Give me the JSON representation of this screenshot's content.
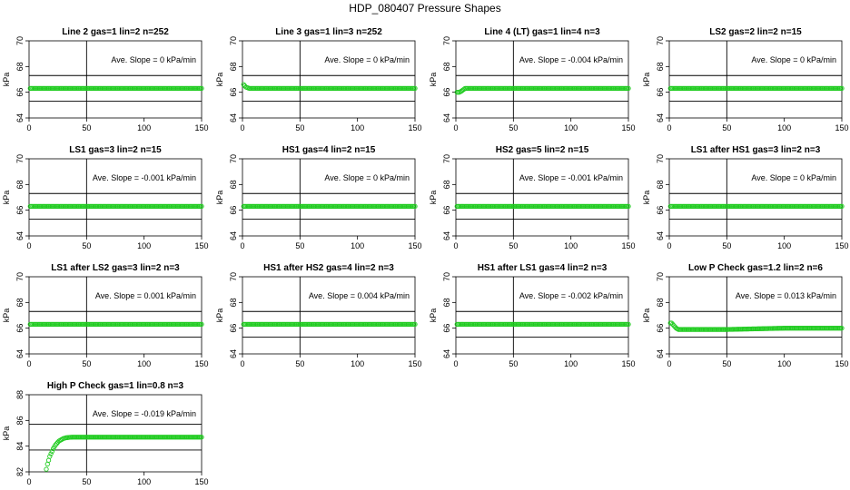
{
  "title": "HDP_080407  Pressure Shapes",
  "series_color": "#22cc22",
  "chart_data": [
    {
      "type": "scatter",
      "title": "Line 2 gas=1 lin=2 n=252",
      "ylabel": "kPa",
      "xlim": [
        0,
        150
      ],
      "ylim": [
        64,
        70
      ],
      "xticks": [
        0,
        50,
        100,
        150
      ],
      "yticks": [
        64,
        66,
        68,
        70
      ],
      "hlines": [
        65.3,
        67.3
      ],
      "vline": 50,
      "annotation": "Ave. Slope =  0  kPa/min",
      "x": [
        1,
        150
      ],
      "y": [
        66.3,
        66.3
      ]
    },
    {
      "type": "scatter",
      "title": "Line 3 gas=1 lin=3 n=252",
      "ylabel": "kPa",
      "xlim": [
        0,
        150
      ],
      "ylim": [
        64,
        70
      ],
      "xticks": [
        0,
        50,
        100,
        150
      ],
      "yticks": [
        64,
        66,
        68,
        70
      ],
      "hlines": [
        65.3,
        67.3
      ],
      "vline": 50,
      "annotation": "Ave. Slope =  0  kPa/min",
      "x": [
        1,
        3,
        6,
        150
      ],
      "y": [
        66.6,
        66.4,
        66.3,
        66.3
      ]
    },
    {
      "type": "scatter",
      "title": "Line 4 (LT) gas=1 lin=4 n=3",
      "ylabel": "kPa",
      "xlim": [
        0,
        150
      ],
      "ylim": [
        64,
        70
      ],
      "xticks": [
        0,
        50,
        100,
        150
      ],
      "yticks": [
        64,
        66,
        68,
        70
      ],
      "hlines": [
        65.3,
        67.3
      ],
      "vline": 50,
      "annotation": "Ave. Slope =  -0.004  kPa/min",
      "x": [
        1,
        3,
        5,
        8,
        150
      ],
      "y": [
        66.0,
        66.0,
        66.1,
        66.3,
        66.3
      ]
    },
    {
      "type": "scatter",
      "title": "LS2 gas=2 lin=2 n=15",
      "ylabel": "kPa",
      "xlim": [
        0,
        150
      ],
      "ylim": [
        64,
        70
      ],
      "xticks": [
        0,
        50,
        100,
        150
      ],
      "yticks": [
        64,
        66,
        68,
        70
      ],
      "hlines": [
        65.3,
        67.3
      ],
      "vline": 50,
      "annotation": "Ave. Slope =  0  kPa/min",
      "x": [
        1,
        150
      ],
      "y": [
        66.3,
        66.3
      ]
    },
    {
      "type": "scatter",
      "title": "LS1 gas=3 lin=2 n=15",
      "ylabel": "kPa",
      "xlim": [
        0,
        150
      ],
      "ylim": [
        64,
        70
      ],
      "xticks": [
        0,
        50,
        100,
        150
      ],
      "yticks": [
        64,
        66,
        68,
        70
      ],
      "hlines": [
        65.3,
        67.3
      ],
      "vline": 50,
      "annotation": "Ave. Slope =  -0.001  kPa/min",
      "x": [
        1,
        150
      ],
      "y": [
        66.3,
        66.3
      ]
    },
    {
      "type": "scatter",
      "title": "HS1 gas=4 lin=2 n=15",
      "ylabel": "kPa",
      "xlim": [
        0,
        150
      ],
      "ylim": [
        64,
        70
      ],
      "xticks": [
        0,
        50,
        100,
        150
      ],
      "yticks": [
        64,
        66,
        68,
        70
      ],
      "hlines": [
        65.3,
        67.3
      ],
      "vline": 50,
      "annotation": "Ave. Slope =  0  kPa/min",
      "x": [
        1,
        150
      ],
      "y": [
        66.3,
        66.3
      ]
    },
    {
      "type": "scatter",
      "title": "HS2 gas=5 lin=2 n=15",
      "ylabel": "kPa",
      "xlim": [
        0,
        150
      ],
      "ylim": [
        64,
        70
      ],
      "xticks": [
        0,
        50,
        100,
        150
      ],
      "yticks": [
        64,
        66,
        68,
        70
      ],
      "hlines": [
        65.3,
        67.3
      ],
      "vline": 50,
      "annotation": "Ave. Slope =  -0.001  kPa/min",
      "x": [
        1,
        150
      ],
      "y": [
        66.3,
        66.3
      ]
    },
    {
      "type": "scatter",
      "title": "LS1 after HS1 gas=3 lin=2 n=3",
      "ylabel": "kPa",
      "xlim": [
        0,
        150
      ],
      "ylim": [
        64,
        70
      ],
      "xticks": [
        0,
        50,
        100,
        150
      ],
      "yticks": [
        64,
        66,
        68,
        70
      ],
      "hlines": [
        65.3,
        67.3
      ],
      "vline": 50,
      "annotation": "Ave. Slope =  0  kPa/min",
      "x": [
        1,
        150
      ],
      "y": [
        66.3,
        66.3
      ]
    },
    {
      "type": "scatter",
      "title": "LS1 after LS2 gas=3 lin=2 n=3",
      "ylabel": "kPa",
      "xlim": [
        0,
        150
      ],
      "ylim": [
        64,
        70
      ],
      "xticks": [
        0,
        50,
        100,
        150
      ],
      "yticks": [
        64,
        66,
        68,
        70
      ],
      "hlines": [
        65.3,
        67.3
      ],
      "vline": 50,
      "annotation": "Ave. Slope =  0.001  kPa/min",
      "x": [
        1,
        150
      ],
      "y": [
        66.3,
        66.3
      ]
    },
    {
      "type": "scatter",
      "title": "HS1 after HS2 gas=4 lin=2 n=3",
      "ylabel": "kPa",
      "xlim": [
        0,
        150
      ],
      "ylim": [
        64,
        70
      ],
      "xticks": [
        0,
        50,
        100,
        150
      ],
      "yticks": [
        64,
        66,
        68,
        70
      ],
      "hlines": [
        65.3,
        67.3
      ],
      "vline": 50,
      "annotation": "Ave. Slope =  0.004  kPa/min",
      "x": [
        1,
        150
      ],
      "y": [
        66.3,
        66.3
      ]
    },
    {
      "type": "scatter",
      "title": "HS1 after LS1 gas=4 lin=2 n=3",
      "ylabel": "kPa",
      "xlim": [
        0,
        150
      ],
      "ylim": [
        64,
        70
      ],
      "xticks": [
        0,
        50,
        100,
        150
      ],
      "yticks": [
        64,
        66,
        68,
        70
      ],
      "hlines": [
        65.3,
        67.3
      ],
      "vline": 50,
      "annotation": "Ave. Slope =  -0.002  kPa/min",
      "x": [
        1,
        150
      ],
      "y": [
        66.3,
        66.3
      ]
    },
    {
      "type": "scatter",
      "title": "Low P Check gas=1.2 lin=2 n=6",
      "ylabel": "kPa",
      "xlim": [
        0,
        150
      ],
      "ylim": [
        64,
        70
      ],
      "xticks": [
        0,
        50,
        100,
        150
      ],
      "yticks": [
        64,
        66,
        68,
        70
      ],
      "hlines": [
        65.3,
        67.3
      ],
      "vline": 50,
      "annotation": "Ave. Slope =  0.013  kPa/min",
      "x": [
        1,
        2,
        3,
        4,
        5,
        6,
        8,
        10,
        15,
        20,
        30,
        50,
        100,
        150
      ],
      "y": [
        66.4,
        66.4,
        66.3,
        66.2,
        66.1,
        66.0,
        65.9,
        65.9,
        65.9,
        65.9,
        65.9,
        65.9,
        66.0,
        66.0
      ]
    },
    {
      "type": "scatter",
      "title": "High P Check gas=1 lin=0.8 n=3",
      "ylabel": "kPa",
      "xlim": [
        0,
        150
      ],
      "ylim": [
        82,
        88
      ],
      "xticks": [
        0,
        50,
        100,
        150
      ],
      "yticks": [
        82,
        84,
        86,
        88
      ],
      "hlines": [
        83.7,
        85.7
      ],
      "vline": 50,
      "annotation": "Ave. Slope =  -0.019  kPa/min",
      "x": [
        15,
        16,
        17,
        18,
        19,
        20,
        21,
        22,
        23,
        24,
        25,
        26,
        27,
        28,
        29,
        30,
        31,
        32,
        34,
        36,
        38,
        40,
        150
      ],
      "y": [
        82.2,
        82.6,
        82.9,
        83.2,
        83.4,
        83.6,
        83.8,
        83.95,
        84.1,
        84.2,
        84.3,
        84.4,
        84.45,
        84.5,
        84.55,
        84.6,
        84.62,
        84.65,
        84.67,
        84.69,
        84.7,
        84.7,
        84.7
      ]
    }
  ]
}
